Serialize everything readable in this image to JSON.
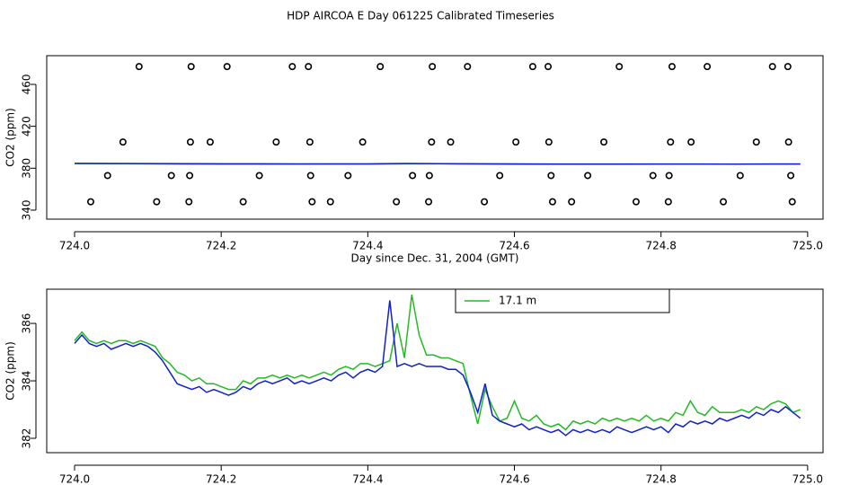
{
  "chart_data": [
    {
      "type": "line",
      "title": "HDP AIRCOA E  Day 061225  Calibrated Timeseries",
      "xlabel": "Day since Dec. 31, 2004 (GMT)",
      "ylabel": "CO2 (ppm)",
      "xlim": [
        723.962,
        725.021
      ],
      "ylim": [
        331.4,
        487.4
      ],
      "xticks": [
        {
          "value": 724,
          "label": "724.0"
        },
        724.2,
        724.4,
        724.6,
        724.8,
        {
          "value": 725,
          "label": "725.0"
        }
      ],
      "yticks": [
        340,
        380,
        420,
        460
      ],
      "series": [
        {
          "kind": "points",
          "color": "#000000",
          "x": [
            724.088,
            724.159,
            724.208,
            724.297,
            724.319,
            724.417,
            724.488,
            724.536,
            724.625,
            724.646,
            724.743,
            724.815,
            724.863,
            724.952,
            724.973,
            724.066,
            724.158,
            724.185,
            724.275,
            724.321,
            724.393,
            724.487,
            724.513,
            724.602,
            724.647,
            724.722,
            724.813,
            724.841,
            724.93,
            724.974,
            724.045,
            724.132,
            724.157,
            724.252,
            724.322,
            724.373,
            724.461,
            724.484,
            724.58,
            724.65,
            724.7,
            724.789,
            724.811,
            724.908,
            724.977,
            724.022,
            724.112,
            724.156,
            724.23,
            724.324,
            724.349,
            724.439,
            724.483,
            724.559,
            724.652,
            724.678,
            724.766,
            724.81,
            724.885,
            724.979
          ],
          "values": [
            477,
            477,
            477,
            477,
            477,
            477,
            477,
            477,
            477,
            477,
            477,
            477,
            477,
            477,
            477,
            405,
            405,
            405,
            405,
            405,
            405,
            405,
            405,
            405,
            405,
            405,
            405,
            405,
            405,
            405,
            373,
            373,
            373,
            373,
            373,
            373,
            373,
            373,
            373,
            373,
            373,
            373,
            373,
            373,
            373,
            348,
            348,
            348,
            348,
            348,
            348,
            348,
            348,
            348,
            348,
            348,
            348,
            348,
            348,
            348
          ]
        },
        {
          "kind": "line",
          "color": "#22bb22",
          "x": [
            724,
            724.05,
            724.1,
            724.15,
            724.2,
            724.25,
            724.3,
            724.35,
            724.4,
            724.45,
            724.5,
            724.55,
            724.6,
            724.65,
            724.7,
            724.75,
            724.8,
            724.85,
            724.9,
            724.95,
            724.99
          ],
          "values": [
            384.4,
            384.3,
            384.2,
            384.0,
            383.9,
            383.9,
            383.9,
            384.0,
            384.0,
            384.2,
            384.3,
            384.0,
            383.8,
            383.8,
            383.8,
            383.8,
            383.9,
            383.9,
            383.9,
            384.0,
            384.0
          ]
        },
        {
          "kind": "line",
          "color": "#1020cc",
          "x": [
            724,
            724.05,
            724.1,
            724.15,
            724.2,
            724.25,
            724.3,
            724.35,
            724.4,
            724.45,
            724.5,
            724.55,
            724.6,
            724.65,
            724.7,
            724.75,
            724.8,
            724.85,
            724.9,
            724.95,
            724.99
          ],
          "values": [
            384.6,
            384.5,
            384.4,
            384.3,
            384.2,
            384.2,
            384.1,
            384.1,
            384.1,
            384.5,
            384.3,
            384.2,
            384.1,
            384.0,
            384.0,
            384.0,
            384.0,
            384.0,
            383.9,
            384.0,
            384.0
          ]
        }
      ]
    },
    {
      "type": "line",
      "xlabel": "Day since Dec. 31, 2004 (GMT)",
      "ylabel": "CO2 (ppm)",
      "xlim": [
        723.962,
        725.021
      ],
      "ylim": [
        381.5,
        387.19
      ],
      "xticks": [
        {
          "value": 724,
          "label": "724.0"
        },
        724.2,
        724.4,
        724.6,
        724.8,
        {
          "value": 725,
          "label": "725.0"
        }
      ],
      "yticks": [
        382,
        384,
        386
      ],
      "legend": "top",
      "series": [
        {
          "kind": "line",
          "color": "#22bb22",
          "name": "17.1 m",
          "x": [
            724,
            724.01,
            724.02,
            724.03,
            724.04,
            724.05,
            724.06,
            724.07,
            724.08,
            724.09,
            724.1,
            724.11,
            724.12,
            724.13,
            724.14,
            724.15,
            724.16,
            724.17,
            724.18,
            724.19,
            724.2,
            724.21,
            724.22,
            724.23,
            724.24,
            724.25,
            724.26,
            724.27,
            724.28,
            724.29,
            724.3,
            724.31,
            724.32,
            724.33,
            724.34,
            724.35,
            724.36,
            724.37,
            724.38,
            724.39,
            724.4,
            724.41,
            724.42,
            724.43,
            724.44,
            724.45,
            724.46,
            724.47,
            724.48,
            724.49,
            724.5,
            724.51,
            724.52,
            724.53,
            724.54,
            724.55,
            724.56,
            724.57,
            724.58,
            724.59,
            724.6,
            724.61,
            724.62,
            724.63,
            724.64,
            724.65,
            724.66,
            724.67,
            724.68,
            724.69,
            724.7,
            724.71,
            724.72,
            724.73,
            724.74,
            724.75,
            724.76,
            724.77,
            724.78,
            724.79,
            724.8,
            724.81,
            724.82,
            724.83,
            724.84,
            724.85,
            724.86,
            724.87,
            724.88,
            724.89,
            724.9,
            724.91,
            724.92,
            724.93,
            724.94,
            724.95,
            724.96,
            724.97,
            724.98,
            724.99
          ],
          "values": [
            385.4,
            385.7,
            385.4,
            385.3,
            385.4,
            385.3,
            385.4,
            385.4,
            385.3,
            385.4,
            385.3,
            385.2,
            384.8,
            384.6,
            384.3,
            384.2,
            384.0,
            384.1,
            383.9,
            383.9,
            383.8,
            383.7,
            383.7,
            384.0,
            383.9,
            384.1,
            384.1,
            384.2,
            384.1,
            384.2,
            384.1,
            384.2,
            384.1,
            384.2,
            384.3,
            384.2,
            384.4,
            384.5,
            384.4,
            384.6,
            384.6,
            384.5,
            384.6,
            384.7,
            386.0,
            384.8,
            387.0,
            385.6,
            384.9,
            384.9,
            384.8,
            384.8,
            384.7,
            384.6,
            383.5,
            382.5,
            383.7,
            383.1,
            382.6,
            382.7,
            383.3,
            382.7,
            382.6,
            382.8,
            382.5,
            382.4,
            382.5,
            382.3,
            382.6,
            382.5,
            382.6,
            382.5,
            382.7,
            382.6,
            382.7,
            382.6,
            382.7,
            382.6,
            382.8,
            382.6,
            382.7,
            382.6,
            382.9,
            382.8,
            383.3,
            382.9,
            382.8,
            383.1,
            382.9,
            382.9,
            382.9,
            383.0,
            382.9,
            383.1,
            383.0,
            383.2,
            383.3,
            383.2,
            382.9,
            383.0
          ]
        },
        {
          "kind": "line",
          "color": "#1020cc",
          "x": [
            724,
            724.01,
            724.02,
            724.03,
            724.04,
            724.05,
            724.06,
            724.07,
            724.08,
            724.09,
            724.1,
            724.11,
            724.12,
            724.13,
            724.14,
            724.15,
            724.16,
            724.17,
            724.18,
            724.19,
            724.2,
            724.21,
            724.22,
            724.23,
            724.24,
            724.25,
            724.26,
            724.27,
            724.28,
            724.29,
            724.3,
            724.31,
            724.32,
            724.33,
            724.34,
            724.35,
            724.36,
            724.37,
            724.38,
            724.39,
            724.4,
            724.41,
            724.42,
            724.43,
            724.44,
            724.45,
            724.46,
            724.47,
            724.48,
            724.49,
            724.5,
            724.51,
            724.52,
            724.53,
            724.54,
            724.55,
            724.56,
            724.57,
            724.58,
            724.59,
            724.6,
            724.61,
            724.62,
            724.63,
            724.64,
            724.65,
            724.66,
            724.67,
            724.68,
            724.69,
            724.7,
            724.71,
            724.72,
            724.73,
            724.74,
            724.75,
            724.76,
            724.77,
            724.78,
            724.79,
            724.8,
            724.81,
            724.82,
            724.83,
            724.84,
            724.85,
            724.86,
            724.87,
            724.88,
            724.89,
            724.9,
            724.91,
            724.92,
            724.93,
            724.94,
            724.95,
            724.96,
            724.97,
            724.98,
            724.99
          ],
          "values": [
            385.3,
            385.6,
            385.3,
            385.2,
            385.3,
            385.1,
            385.2,
            385.3,
            385.2,
            385.3,
            385.2,
            385.0,
            384.7,
            384.3,
            383.9,
            383.8,
            383.7,
            383.8,
            383.6,
            383.7,
            383.6,
            383.5,
            383.6,
            383.8,
            383.7,
            383.9,
            384.0,
            383.9,
            384.0,
            384.1,
            383.9,
            384.0,
            383.9,
            384.0,
            384.1,
            384.0,
            384.2,
            384.3,
            384.1,
            384.3,
            384.4,
            384.3,
            384.5,
            386.8,
            384.5,
            384.6,
            384.5,
            384.6,
            384.5,
            384.5,
            384.5,
            384.4,
            384.4,
            384.2,
            383.6,
            382.9,
            383.9,
            382.8,
            382.6,
            382.5,
            382.4,
            382.5,
            382.3,
            382.4,
            382.3,
            382.2,
            382.3,
            382.1,
            382.3,
            382.2,
            382.3,
            382.2,
            382.3,
            382.2,
            382.4,
            382.3,
            382.2,
            382.3,
            382.4,
            382.3,
            382.4,
            382.2,
            382.5,
            382.4,
            382.6,
            382.5,
            382.6,
            382.5,
            382.7,
            382.6,
            382.7,
            382.8,
            382.7,
            382.9,
            382.8,
            383.0,
            382.9,
            383.1,
            382.9,
            382.7
          ]
        }
      ]
    }
  ]
}
